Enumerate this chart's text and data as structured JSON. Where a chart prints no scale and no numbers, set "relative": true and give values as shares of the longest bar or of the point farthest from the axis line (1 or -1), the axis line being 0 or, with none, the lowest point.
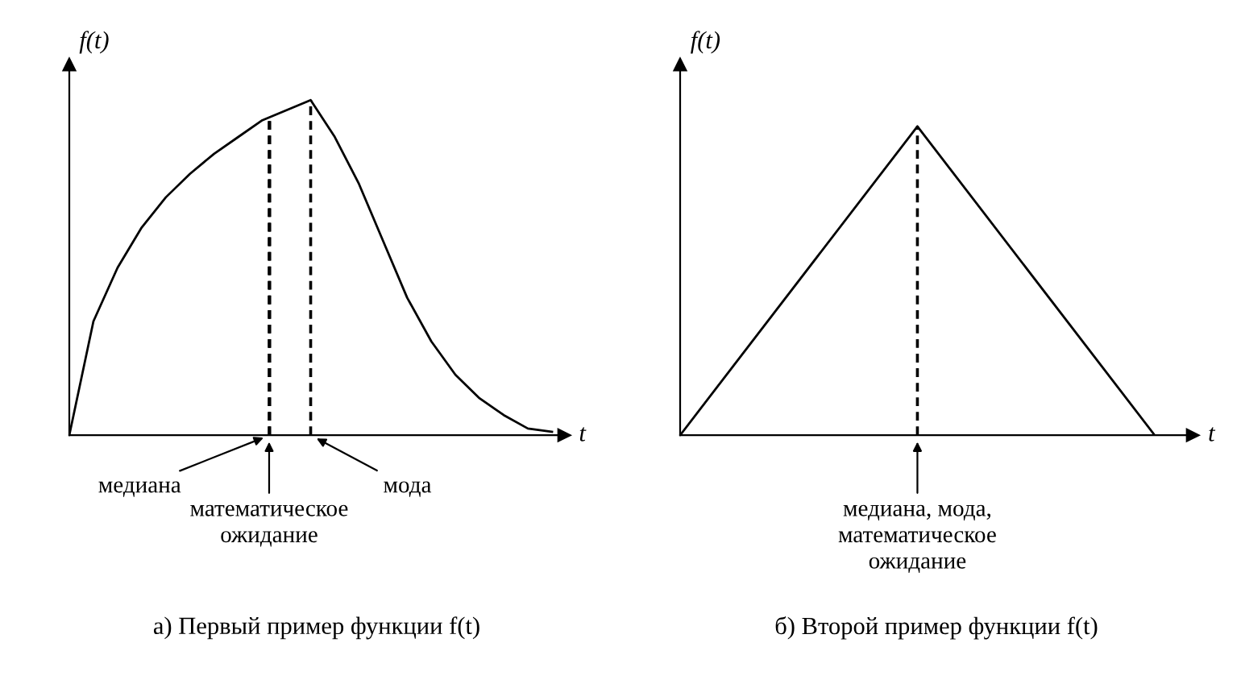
{
  "chart_data": [
    {
      "type": "line",
      "relative": true,
      "title": "а) Первый пример функции f(t)",
      "xlabel": "t",
      "ylabel": "f(t)",
      "categories": [
        null,
        null,
        null,
        null,
        null,
        null,
        null,
        null,
        null,
        null,
        null,
        null,
        null,
        null,
        null,
        null,
        null,
        null,
        null,
        null,
        null
      ],
      "series": [
        {
          "color": "#000000",
          "values": [
            0,
            0.34,
            0.5,
            0.62,
            0.71,
            0.78,
            0.84,
            0.89,
            0.94,
            0.97,
            1,
            0.89,
            0.75,
            0.58,
            0.41,
            0.28,
            0.18,
            0.11,
            0.06,
            0.02,
            0.01
          ]
        }
      ],
      "annotations": [
        "медиана",
        "математическое\nожидание",
        "мода"
      ]
    },
    {
      "type": "line",
      "relative": true,
      "title": "б) Второй пример функции f(t)",
      "xlabel": "t",
      "ylabel": "f(t)",
      "categories": [
        null,
        null,
        null
      ],
      "series": [
        {
          "color": "#000000",
          "values": [
            0,
            1,
            0
          ]
        }
      ],
      "annotations": [
        "медиана, мода,\nматематическое\nожидание"
      ]
    }
  ]
}
